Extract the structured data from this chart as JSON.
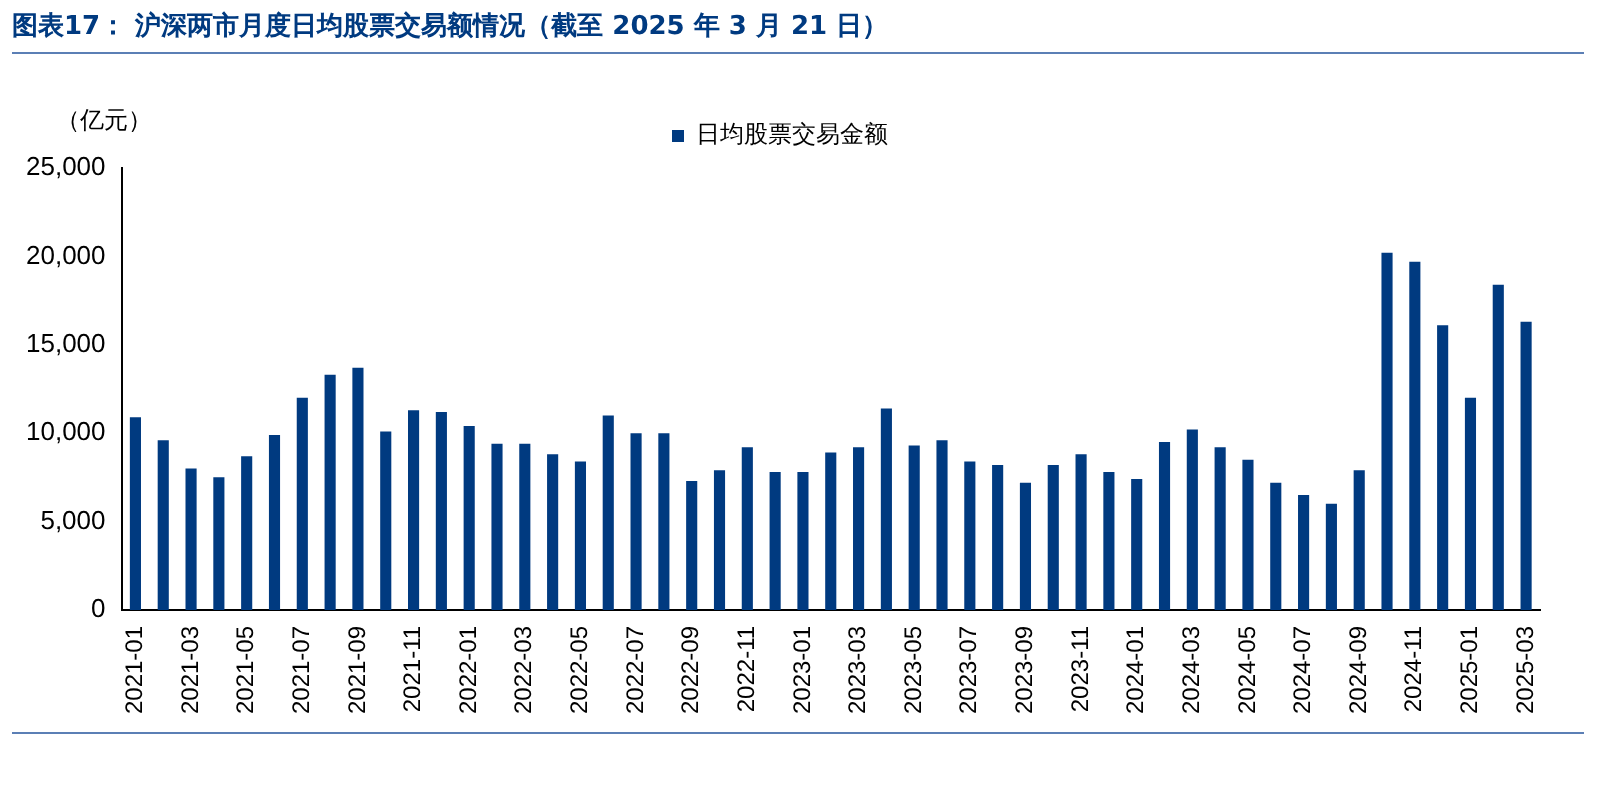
{
  "chart_data": {
    "type": "bar",
    "title": "图表17：  沪深两市月度日均股票交易额情况（截至 2025 年 3 月 21 日）",
    "ylabel": "（亿元）",
    "categories": [
      "2021-01",
      null,
      "2021-03",
      null,
      "2021-05",
      null,
      "2021-07",
      null,
      "2021-09",
      null,
      "2021-11",
      null,
      "2022-01",
      null,
      "2022-03",
      null,
      "2022-05",
      null,
      "2022-07",
      null,
      "2022-09",
      null,
      "2022-11",
      null,
      "2023-01",
      null,
      "2023-03",
      null,
      "2023-05",
      null,
      "2023-07",
      null,
      "2023-09",
      null,
      "2023-11",
      null,
      "2024-01",
      null,
      "2024-03",
      null,
      "2024-05",
      null,
      "2024-07",
      null,
      "2024-09",
      null,
      "2024-11",
      null,
      "2025-01",
      null,
      "2025-03"
    ],
    "series": [
      {
        "name": "日均股票交易金额",
        "color": "#003a80",
        "values": [
          10900,
          9600,
          8000,
          7500,
          8700,
          9900,
          12000,
          13300,
          13700,
          10100,
          11300,
          11200,
          10400,
          9400,
          9400,
          8800,
          8400,
          11000,
          10000,
          10000,
          7300,
          7900,
          9200,
          7800,
          7800,
          8900,
          9200,
          11400,
          9300,
          9600,
          8400,
          8200,
          7200,
          8200,
          8800,
          7800,
          7400,
          9500,
          10200,
          9200,
          8500,
          7200,
          6500,
          6000,
          7900,
          20200,
          19700,
          16100,
          12000,
          18400,
          16300
        ]
      }
    ],
    "ylim": [
      0,
      25000
    ],
    "yticks": [
      0,
      {
        "value": 5000,
        "label": "5,000"
      },
      {
        "value": 10000,
        "label": "10,000"
      },
      {
        "value": 15000,
        "label": "15,000"
      },
      {
        "value": 20000,
        "label": "20,000"
      },
      {
        "value": 25000,
        "label": "25,000"
      }
    ],
    "grid": false,
    "legend": "top"
  }
}
